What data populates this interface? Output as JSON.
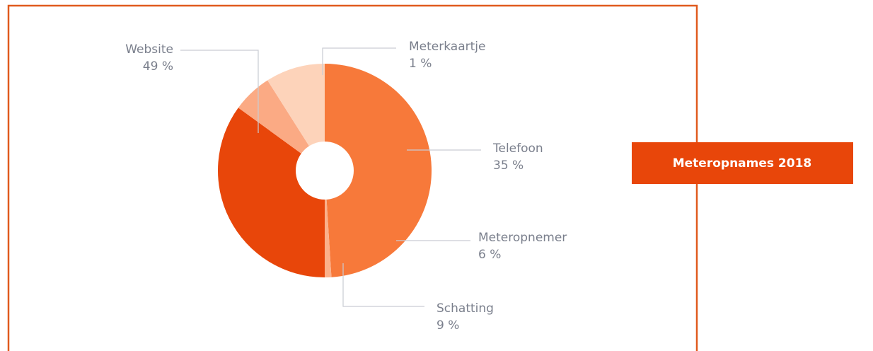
{
  "chart_data": {
    "type": "donut",
    "categories": [
      "Website",
      "Meterkaartje",
      "Telefoon",
      "Meteropnemer",
      "Schatting"
    ],
    "values": [
      49,
      1,
      35,
      6,
      9
    ],
    "value_labels": [
      "49 %",
      "1 %",
      "35 %",
      "6 %",
      "9 %"
    ],
    "colors": [
      "#f7793a",
      "#fbb08a",
      "#e8460a",
      "#fbaa84",
      "#fdd3ba"
    ]
  },
  "button": {
    "label": "Meteropnames 2018"
  }
}
